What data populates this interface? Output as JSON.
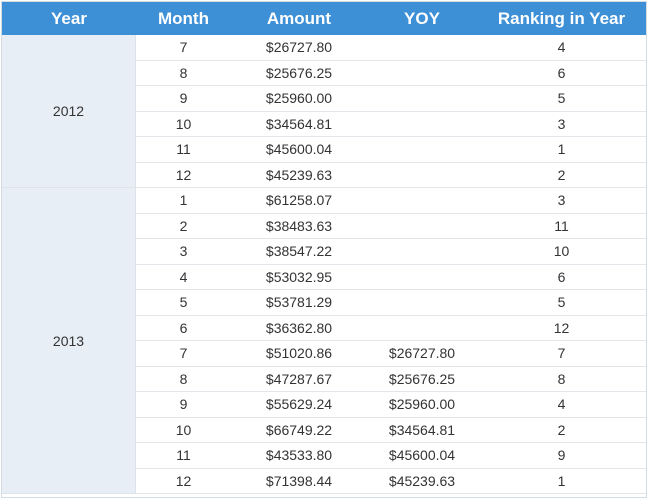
{
  "table": {
    "headers": [
      "Year",
      "Month",
      "Amount",
      "YOY",
      "Ranking in Year"
    ],
    "groups": [
      {
        "year": "2012",
        "rows": [
          {
            "month": "7",
            "amount": "$26727.80",
            "yoy": "",
            "rank": "4"
          },
          {
            "month": "8",
            "amount": "$25676.25",
            "yoy": "",
            "rank": "6"
          },
          {
            "month": "9",
            "amount": "$25960.00",
            "yoy": "",
            "rank": "5"
          },
          {
            "month": "10",
            "amount": "$34564.81",
            "yoy": "",
            "rank": "3"
          },
          {
            "month": "11",
            "amount": "$45600.04",
            "yoy": "",
            "rank": "1"
          },
          {
            "month": "12",
            "amount": "$45239.63",
            "yoy": "",
            "rank": "2"
          }
        ]
      },
      {
        "year": "2013",
        "rows": [
          {
            "month": "1",
            "amount": "$61258.07",
            "yoy": "",
            "rank": "3"
          },
          {
            "month": "2",
            "amount": "$38483.63",
            "yoy": "",
            "rank": "11"
          },
          {
            "month": "3",
            "amount": "$38547.22",
            "yoy": "",
            "rank": "10"
          },
          {
            "month": "4",
            "amount": "$53032.95",
            "yoy": "",
            "rank": "6"
          },
          {
            "month": "5",
            "amount": "$53781.29",
            "yoy": "",
            "rank": "5"
          },
          {
            "month": "6",
            "amount": "$36362.80",
            "yoy": "",
            "rank": "12"
          },
          {
            "month": "7",
            "amount": "$51020.86",
            "yoy": "$26727.80",
            "rank": "7"
          },
          {
            "month": "8",
            "amount": "$47287.67",
            "yoy": "$25676.25",
            "rank": "8"
          },
          {
            "month": "9",
            "amount": "$55629.24",
            "yoy": "$25960.00",
            "rank": "4"
          },
          {
            "month": "10",
            "amount": "$66749.22",
            "yoy": "$34564.81",
            "rank": "2"
          },
          {
            "month": "11",
            "amount": "$43533.80",
            "yoy": "$45600.04",
            "rank": "9"
          },
          {
            "month": "12",
            "amount": "$71398.44",
            "yoy": "$45239.63",
            "rank": "1"
          }
        ]
      }
    ]
  },
  "colors": {
    "header_bg": "#3d8fd6",
    "header_text": "#ffffff",
    "year_cell_bg": "#e8eef5",
    "row_bg": "#ffffff",
    "text": "#333333"
  }
}
